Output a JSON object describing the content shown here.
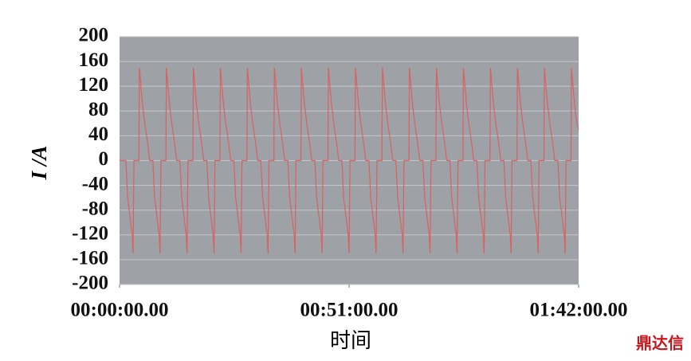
{
  "chart_data": {
    "type": "line",
    "ylabel": "I /A",
    "xlabel": "时间",
    "watermark": "鼎达信",
    "xlim": [
      0,
      102
    ],
    "ylim": [
      -200,
      200
    ],
    "xticks": [
      {
        "value": 0,
        "label": "00:00:00.00"
      },
      {
        "value": 51,
        "label": "00:51:00.00"
      },
      {
        "value": 102,
        "label": "01:42:00.00"
      }
    ],
    "yticks": [
      -200,
      -160,
      -120,
      -80,
      -40,
      0,
      40,
      80,
      120,
      160,
      200
    ],
    "grid": true,
    "background": "#9ea2a7",
    "series": [
      {
        "color": "#d9615f",
        "x": [
          0,
          1.4,
          1.8,
          2.3,
          2.8,
          3.0,
          3.2,
          4.3,
          4.4,
          4.75,
          5.1,
          5.6,
          6.2,
          6.7,
          7.4,
          7.8,
          8.3,
          8.8,
          9.0,
          9.2,
          10.3,
          10.4,
          10.75,
          11.1,
          11.6,
          12.2,
          12.7,
          13.4,
          13.8,
          14.3,
          14.8,
          15.0,
          15.2,
          16.3,
          16.4,
          16.75,
          17.1,
          17.6,
          18.2,
          18.7,
          19.4,
          19.8,
          20.3,
          20.8,
          21.0,
          21.2,
          22.3,
          22.4,
          22.75,
          23.1,
          23.6,
          24.2,
          24.7,
          25.4,
          25.8,
          26.3,
          26.8,
          27.0,
          27.2,
          28.3,
          28.4,
          28.75,
          29.1,
          29.6,
          30.2,
          30.7,
          31.4,
          31.8,
          32.3,
          32.8,
          33.0,
          33.2,
          34.3,
          34.4,
          34.75,
          35.1,
          35.6,
          36.2,
          36.7,
          37.4,
          37.8,
          38.3,
          38.8,
          39.0,
          39.2,
          40.3,
          40.4,
          40.75,
          41.1,
          41.6,
          42.2,
          42.7,
          43.4,
          43.8,
          44.3,
          44.8,
          45.0,
          45.2,
          46.3,
          46.4,
          46.75,
          47.1,
          47.6,
          48.2,
          48.7,
          49.4,
          49.8,
          50.3,
          50.8,
          51.0,
          51.2,
          52.3,
          52.4,
          52.75,
          53.1,
          53.6,
          54.2,
          54.7,
          55.4,
          55.8,
          56.3,
          56.8,
          57.0,
          57.2,
          58.3,
          58.4,
          58.75,
          59.1,
          59.6,
          60.2,
          60.7,
          61.4,
          61.8,
          62.3,
          62.8,
          63.0,
          63.2,
          64.3,
          64.4,
          64.75,
          65.1,
          65.6,
          66.2,
          66.7,
          67.4,
          67.8,
          68.3,
          68.8,
          69.0,
          69.2,
          70.3,
          70.4,
          70.75,
          71.1,
          71.6,
          72.2,
          72.7,
          73.4,
          73.8,
          74.3,
          74.8,
          75.0,
          75.2,
          76.3,
          76.4,
          76.75,
          77.1,
          77.6,
          78.2,
          78.7,
          79.4,
          79.8,
          80.3,
          80.8,
          81.0,
          81.2,
          82.3,
          82.4,
          82.75,
          83.1,
          83.6,
          84.2,
          84.7,
          85.4,
          85.8,
          86.3,
          86.8,
          87.0,
          87.2,
          88.3,
          88.4,
          88.75,
          89.1,
          89.6,
          90.2,
          90.7,
          91.4,
          91.8,
          92.3,
          92.8,
          93.0,
          93.2,
          94.3,
          94.4,
          94.75,
          95.1,
          95.6,
          96.2,
          96.7,
          97.4,
          97.8,
          98.3,
          98.8,
          99.0,
          99.2,
          100.3,
          100.4,
          100.75,
          101.1,
          101.6,
          102
        ],
        "values": [
          0,
          0,
          -60,
          -90,
          -120,
          -150,
          0,
          0,
          150,
          120,
          90,
          60,
          30,
          0,
          0,
          -60,
          -90,
          -120,
          -150,
          0,
          0,
          150,
          120,
          90,
          60,
          30,
          0,
          0,
          -60,
          -90,
          -120,
          -150,
          0,
          0,
          150,
          120,
          90,
          60,
          30,
          0,
          0,
          -60,
          -90,
          -120,
          -150,
          0,
          0,
          150,
          120,
          90,
          60,
          30,
          0,
          0,
          -60,
          -90,
          -120,
          -150,
          0,
          0,
          150,
          120,
          90,
          60,
          30,
          0,
          0,
          -60,
          -90,
          -120,
          -150,
          0,
          0,
          150,
          120,
          90,
          60,
          30,
          0,
          0,
          -60,
          -90,
          -120,
          -150,
          0,
          0,
          150,
          120,
          90,
          60,
          30,
          0,
          0,
          -60,
          -90,
          -120,
          -150,
          0,
          0,
          150,
          120,
          90,
          60,
          30,
          0,
          0,
          -60,
          -90,
          -120,
          -150,
          0,
          0,
          150,
          120,
          90,
          60,
          30,
          0,
          0,
          -60,
          -90,
          -120,
          -150,
          0,
          0,
          150,
          120,
          90,
          60,
          30,
          0,
          0,
          -60,
          -90,
          -120,
          -150,
          0,
          0,
          150,
          120,
          90,
          60,
          30,
          0,
          0,
          -60,
          -90,
          -120,
          -150,
          0,
          0,
          150,
          120,
          90,
          60,
          30,
          0,
          0,
          -60,
          -90,
          -120,
          -150,
          0,
          0,
          150,
          120,
          90,
          60,
          30,
          0,
          0,
          -60,
          -90,
          -120,
          -150,
          0,
          0,
          150,
          120,
          90,
          60,
          30,
          0,
          0,
          -60,
          -90,
          -120,
          -150,
          0,
          0,
          150,
          120,
          90,
          60,
          30,
          0,
          0,
          -60,
          -90,
          -120,
          -150,
          0,
          0,
          150,
          120,
          90,
          60,
          30,
          0,
          0,
          -60,
          -90,
          -120,
          -150,
          0,
          0,
          150,
          120,
          90,
          60,
          50
        ]
      }
    ]
  }
}
